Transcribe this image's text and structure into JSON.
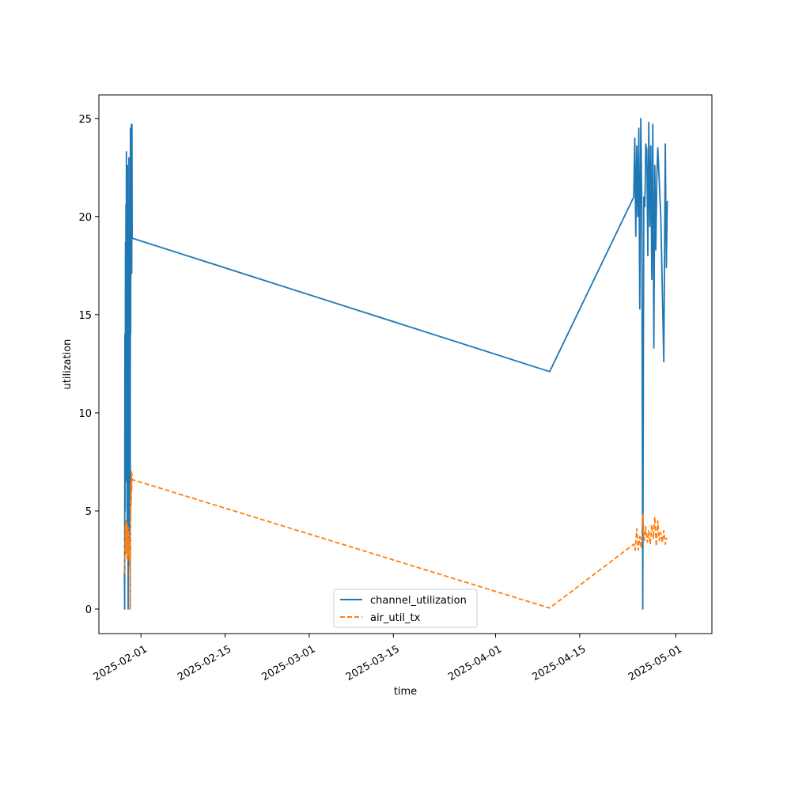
{
  "chart_data": {
    "type": "line",
    "title": "",
    "xlabel": "time",
    "ylabel": "utilization",
    "x_ticks": [
      "2025-02-01",
      "2025-02-15",
      "2025-03-01",
      "2025-03-15",
      "2025-04-01",
      "2025-04-15",
      "2025-05-01"
    ],
    "y_ticks": [
      "0",
      "5",
      "10",
      "15",
      "20",
      "25"
    ],
    "xlim": [
      "2025-01-25",
      "2025-05-07"
    ],
    "ylim": [
      -1.25,
      26.2
    ],
    "grid": false,
    "legend_position": "lower center",
    "series": [
      {
        "name": "channel_utilization",
        "color": "#1f77b4",
        "style": "solid",
        "points": [
          [
            "2025-01-29T06:00",
            2.0
          ],
          [
            "2025-01-29T07:00",
            0.0
          ],
          [
            "2025-01-29T08:00",
            14.0
          ],
          [
            "2025-01-29T09:00",
            5.0
          ],
          [
            "2025-01-29T10:00",
            18.7
          ],
          [
            "2025-01-29T11:00",
            6.5
          ],
          [
            "2025-01-29T12:00",
            20.6
          ],
          [
            "2025-01-29T13:00",
            7.0
          ],
          [
            "2025-01-29T14:00",
            23.3
          ],
          [
            "2025-01-29T15:00",
            8.0
          ],
          [
            "2025-01-29T16:00",
            15.8
          ],
          [
            "2025-01-29T17:00",
            4.0
          ],
          [
            "2025-01-29T18:00",
            22.6
          ],
          [
            "2025-01-29T19:00",
            5.5
          ],
          [
            "2025-01-29T20:00",
            17.8
          ],
          [
            "2025-01-29T21:00",
            0.0
          ],
          [
            "2025-01-29T22:00",
            18.2
          ],
          [
            "2025-01-29T23:00",
            3.0
          ],
          [
            "2025-01-30T00:00",
            23.0
          ],
          [
            "2025-01-30T01:00",
            2.2
          ],
          [
            "2025-01-30T02:00",
            15.0
          ],
          [
            "2025-01-30T03:00",
            4.0
          ],
          [
            "2025-01-30T04:00",
            14.0
          ],
          [
            "2025-01-30T05:00",
            0.0
          ],
          [
            "2025-01-30T06:00",
            24.5
          ],
          [
            "2025-01-30T07:00",
            14.0
          ],
          [
            "2025-01-30T08:00",
            24.4
          ],
          [
            "2025-01-30T09:00",
            19.0
          ],
          [
            "2025-01-30T10:00",
            24.7
          ],
          [
            "2025-01-30T11:00",
            17.1
          ],
          [
            "2025-01-30T12:00",
            24.7
          ],
          [
            "2025-01-30T13:00",
            18.9
          ],
          [
            "2025-04-10T00:00",
            12.1
          ],
          [
            "2025-04-24T00:00",
            21.0
          ],
          [
            "2025-04-24T04:00",
            24.0
          ],
          [
            "2025-04-24T08:00",
            19.0
          ],
          [
            "2025-04-24T12:00",
            23.6
          ],
          [
            "2025-04-24T16:00",
            20.0
          ],
          [
            "2025-04-24T20:00",
            24.5
          ],
          [
            "2025-04-25T00:00",
            15.3
          ],
          [
            "2025-04-25T04:00",
            25.0
          ],
          [
            "2025-04-25T08:00",
            20.5
          ],
          [
            "2025-04-25T12:00",
            0.0
          ],
          [
            "2025-04-25T16:00",
            21.0
          ],
          [
            "2025-04-25T20:00",
            20.5
          ],
          [
            "2025-04-26T00:00",
            23.7
          ],
          [
            "2025-04-26T04:00",
            23.4
          ],
          [
            "2025-04-26T08:00",
            18.0
          ],
          [
            "2025-04-26T12:00",
            24.8
          ],
          [
            "2025-04-26T16:00",
            19.5
          ],
          [
            "2025-04-26T20:00",
            23.6
          ],
          [
            "2025-04-27T00:00",
            16.8
          ],
          [
            "2025-04-27T04:00",
            24.7
          ],
          [
            "2025-04-27T08:00",
            13.3
          ],
          [
            "2025-04-27T12:00",
            22.6
          ],
          [
            "2025-04-27T16:00",
            18.3
          ],
          [
            "2025-04-27T20:00",
            22.0
          ],
          [
            "2025-04-28T00:00",
            23.5
          ],
          [
            "2025-04-28T12:00",
            20.0
          ],
          [
            "2025-04-29T00:00",
            12.6
          ],
          [
            "2025-04-29T06:00",
            23.7
          ],
          [
            "2025-04-29T10:00",
            17.4
          ],
          [
            "2025-04-29T14:00",
            20.8
          ]
        ]
      },
      {
        "name": "air_util_tx",
        "color": "#ff7f0e",
        "style": "dashed",
        "points": [
          [
            "2025-01-29T06:00",
            1.8
          ],
          [
            "2025-01-29T08:00",
            2.5
          ],
          [
            "2025-01-29T09:00",
            3.5
          ],
          [
            "2025-01-29T10:00",
            4.3
          ],
          [
            "2025-01-29T11:00",
            3.2
          ],
          [
            "2025-01-29T12:00",
            4.6
          ],
          [
            "2025-01-29T13:00",
            2.8
          ],
          [
            "2025-01-29T14:00",
            4.0
          ],
          [
            "2025-01-29T15:00",
            3.0
          ],
          [
            "2025-01-29T16:00",
            4.4
          ],
          [
            "2025-01-29T17:00",
            2.6
          ],
          [
            "2025-01-29T18:00",
            3.8
          ],
          [
            "2025-01-29T19:00",
            3.0
          ],
          [
            "2025-01-29T20:00",
            4.2
          ],
          [
            "2025-01-29T21:00",
            2.7
          ],
          [
            "2025-01-29T22:00",
            3.6
          ],
          [
            "2025-01-29T23:00",
            3.1
          ],
          [
            "2025-01-30T00:00",
            4.0
          ],
          [
            "2025-01-30T01:00",
            2.5
          ],
          [
            "2025-01-30T02:00",
            3.3
          ],
          [
            "2025-01-30T03:00",
            2.3
          ],
          [
            "2025-01-30T04:00",
            3.0
          ],
          [
            "2025-01-30T05:00",
            0.0
          ],
          [
            "2025-01-30T06:00",
            5.5
          ],
          [
            "2025-01-30T07:00",
            4.6
          ],
          [
            "2025-01-30T08:00",
            6.5
          ],
          [
            "2025-01-30T09:00",
            5.3
          ],
          [
            "2025-01-30T10:00",
            7.0
          ],
          [
            "2025-01-30T11:00",
            6.0
          ],
          [
            "2025-01-30T12:00",
            6.9
          ],
          [
            "2025-01-30T13:00",
            6.6
          ],
          [
            "2025-04-10T00:00",
            0.05
          ],
          [
            "2025-04-24T00:00",
            3.3
          ],
          [
            "2025-04-24T06:00",
            3.0
          ],
          [
            "2025-04-24T12:00",
            4.1
          ],
          [
            "2025-04-24T18:00",
            3.0
          ],
          [
            "2025-04-25T00:00",
            3.7
          ],
          [
            "2025-04-25T06:00",
            3.1
          ],
          [
            "2025-04-25T12:00",
            4.8
          ],
          [
            "2025-04-25T18:00",
            3.5
          ],
          [
            "2025-04-26T00:00",
            4.2
          ],
          [
            "2025-04-26T06:00",
            3.4
          ],
          [
            "2025-04-26T12:00",
            4.0
          ],
          [
            "2025-04-26T18:00",
            3.3
          ],
          [
            "2025-04-27T00:00",
            4.3
          ],
          [
            "2025-04-27T06:00",
            3.6
          ],
          [
            "2025-04-27T12:00",
            4.7
          ],
          [
            "2025-04-27T18:00",
            3.2
          ],
          [
            "2025-04-28T00:00",
            4.5
          ],
          [
            "2025-04-28T06:00",
            3.5
          ],
          [
            "2025-04-28T12:00",
            3.9
          ],
          [
            "2025-04-28T18:00",
            3.4
          ],
          [
            "2025-04-29T00:00",
            4.0
          ],
          [
            "2025-04-29T06:00",
            3.3
          ],
          [
            "2025-04-29T10:00",
            3.6
          ],
          [
            "2025-04-29T14:00",
            3.6
          ]
        ]
      }
    ]
  }
}
